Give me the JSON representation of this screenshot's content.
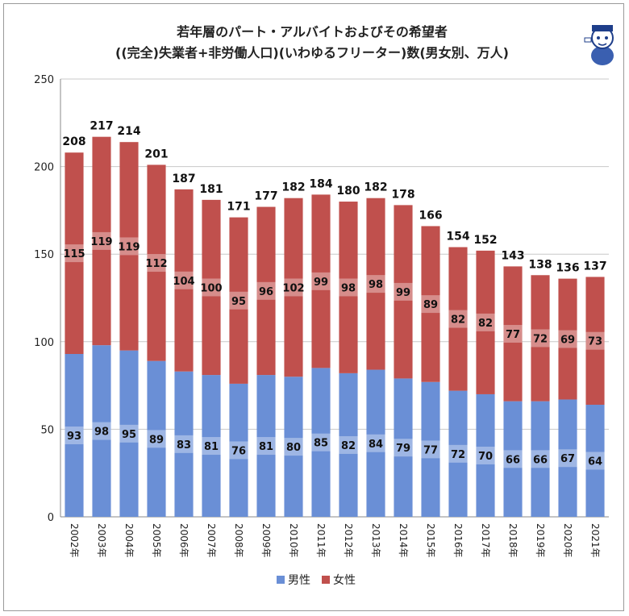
{
  "chart_data": {
    "type": "bar",
    "stacked": true,
    "title_line1": "若年層のパート・アルバイトおよびその希望者",
    "title_line2": "((完全)失業者+非労働人口)(いわゆるフリーター)数(男女別、万人)",
    "categories": [
      "2002年",
      "2003年",
      "2004年",
      "2005年",
      "2006年",
      "2007年",
      "2008年",
      "2009年",
      "2010年",
      "2011年",
      "2012年",
      "2013年",
      "2014年",
      "2015年",
      "2016年",
      "2017年",
      "2018年",
      "2019年",
      "2020年",
      "2021年"
    ],
    "series": [
      {
        "name": "男性",
        "color": "#6a8fd6",
        "values": [
          93,
          98,
          95,
          89,
          83,
          81,
          76,
          81,
          80,
          85,
          82,
          84,
          79,
          77,
          72,
          70,
          66,
          66,
          67,
          64
        ]
      },
      {
        "name": "女性",
        "color": "#c0504d",
        "values": [
          115,
          119,
          119,
          112,
          104,
          100,
          95,
          96,
          102,
          99,
          98,
          98,
          99,
          89,
          82,
          82,
          77,
          72,
          69,
          73
        ]
      }
    ],
    "totals": [
      208,
      217,
      214,
      201,
      187,
      181,
      171,
      177,
      182,
      184,
      180,
      182,
      178,
      166,
      154,
      152,
      143,
      138,
      136,
      137
    ],
    "ylim": [
      0,
      250
    ],
    "yticks": [
      0,
      50,
      100,
      150,
      200,
      250
    ],
    "grid": true,
    "legend_position": "bottom"
  },
  "mascot_icon": "mascot-character-icon"
}
